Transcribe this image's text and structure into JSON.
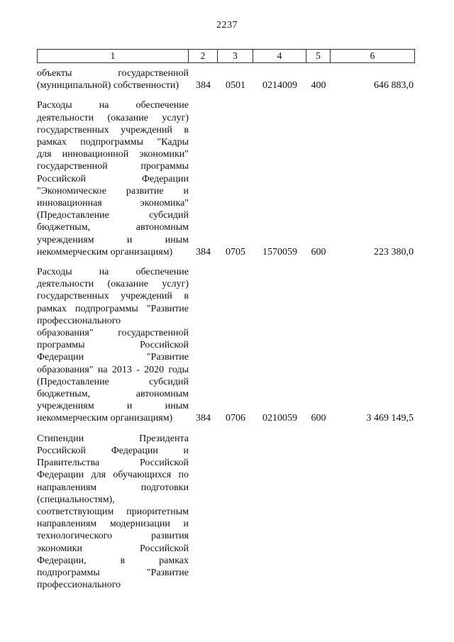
{
  "page": {
    "number": "2237"
  },
  "table": {
    "header_labels": [
      "1",
      "2",
      "3",
      "4",
      "5",
      "6"
    ],
    "rows": [
      {
        "text": "объекты государственной",
        "last_line": "(муниципальной) собственности)",
        "values": [
          "384",
          "0501",
          "0214009",
          "400",
          "646 883,0"
        ]
      },
      {
        "text": "Расходы на обеспечение\nдеятельности (оказание услуг)\nгосударственных учреждений в\nрамках подпрограммы \"Кадры\nдля инновационной экономики\"\nгосударственной программы\nРоссийской Федерации\n\"Экономическое развитие и\nинновационная экономика\"\n(Предоставление субсидий\nбюджетным, автономным\nучреждениям и иным",
        "last_line": "некоммерческим организациям)",
        "values": [
          "384",
          "0705",
          "1570059",
          "600",
          "223 380,0"
        ]
      },
      {
        "text": "Расходы на обеспечение\nдеятельности (оказание услуг)\nгосударственных учреждений в\nрамках подпрограммы \"Развитие\nпрофессионального\nобразования\" государственной\nпрограммы Российской\nФедерации \"Развитие\nобразования\" на 2013 - 2020 годы\n(Предоставление субсидий\nбюджетным, автономным\nучреждениям и иным",
        "last_line": "некоммерческим организациям)",
        "values": [
          "384",
          "0706",
          "0210059",
          "600",
          "3 469 149,5"
        ]
      },
      {
        "text": "Стипендии Президента\nРоссийской Федерации и\nПравительства Российской\nФедерации для обучающихся по\nнаправлениям подготовки\n(специальностям),\nсоответствующим приоритетным\nнаправлениям модернизации и\nтехнологического развития\nэкономики Российской\nФедерации, в рамках\nподпрограммы \"Развитие",
        "last_line": "профессионального",
        "values": [
          "",
          "",
          "",
          "",
          ""
        ]
      }
    ]
  }
}
